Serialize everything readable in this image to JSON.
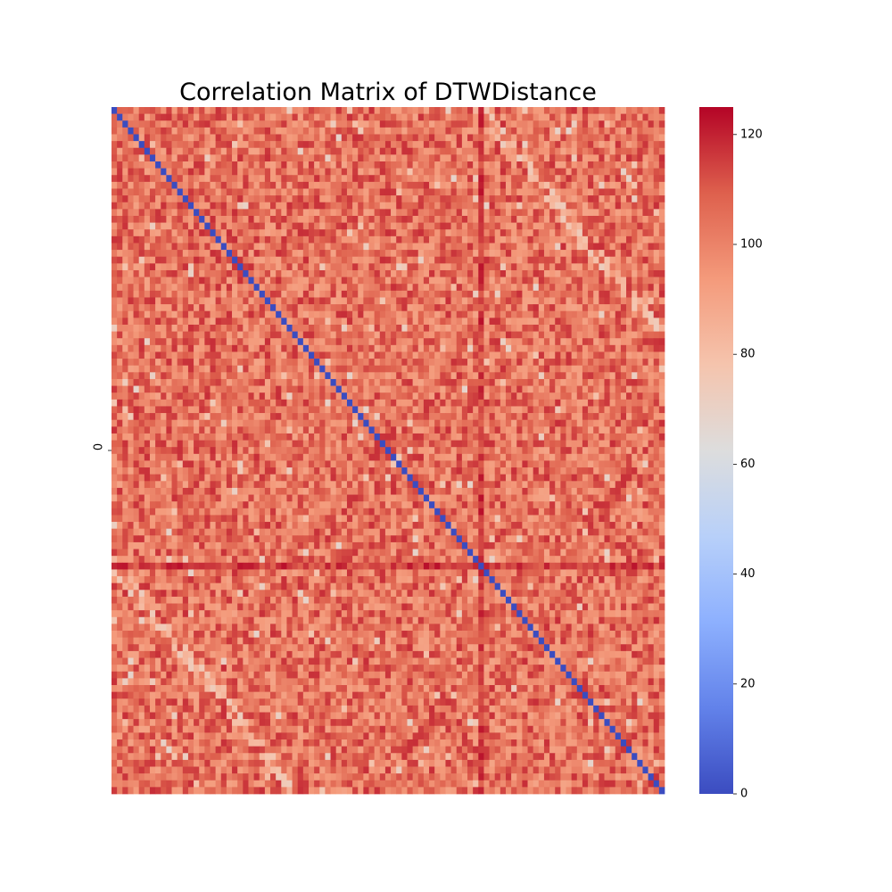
{
  "chart_data": {
    "type": "heatmap",
    "title": "Correlation Matrix of DTWDistance",
    "xlabel": "",
    "ylabel": "",
    "y_tick_labels": [
      "0"
    ],
    "matrix_size": 101,
    "colormap": "coolwarm",
    "value_range": [
      0,
      125
    ],
    "typical_offdiagonal_range": [
      90,
      118
    ],
    "diagonal_value": 0,
    "colorbar": {
      "ticks": [
        0,
        20,
        40,
        60,
        80,
        100,
        120
      ],
      "tick_labels": [
        "0",
        "20",
        "40",
        "60",
        "80",
        "100",
        "120"
      ]
    }
  }
}
